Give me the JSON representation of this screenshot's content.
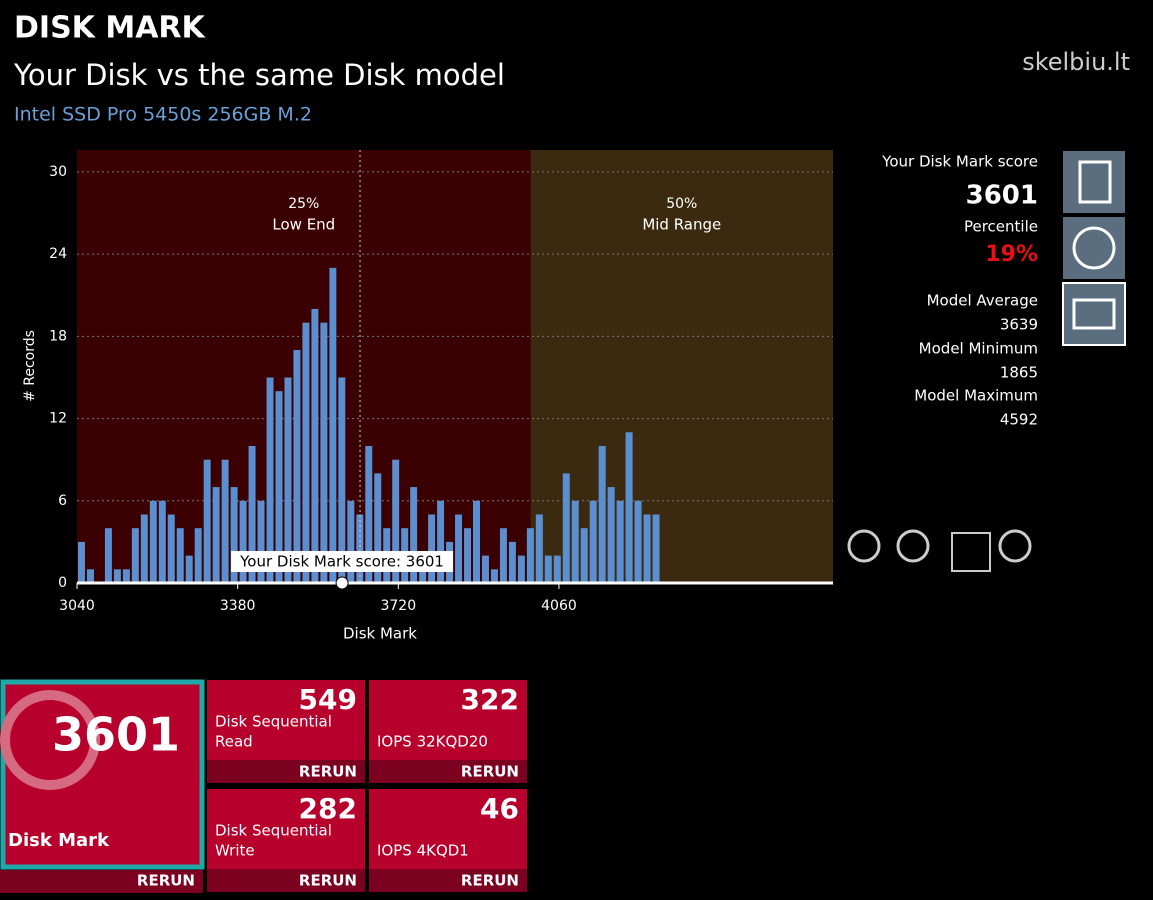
{
  "header": {
    "title": "DISK MARK",
    "subtitle": "Your Disk vs the same Disk model",
    "model": "Intel SSD Pro 5450s 256GB M.2",
    "logo": "skelbiu.lt"
  },
  "chart_data": {
    "type": "histogram",
    "xlabel": "Disk Mark",
    "ylabel": "# Records",
    "color": "#5b8fd0",
    "bins": [
      3040,
      3059,
      3078,
      3097,
      3116,
      3135,
      3154,
      3173,
      3192,
      3211,
      3230,
      3249,
      3268,
      3287,
      3306,
      3325,
      3344,
      3363,
      3382,
      3401,
      3420,
      3439,
      3458,
      3477,
      3496,
      3515,
      3534,
      3553,
      3572,
      3591,
      3610,
      3629,
      3648,
      3667,
      3686,
      3705,
      3724,
      3743,
      3762,
      3781,
      3800,
      3819,
      3838,
      3857,
      3876,
      3895,
      3914,
      3933,
      3952,
      3971,
      3990,
      4009,
      4028,
      4047,
      4066,
      4085,
      4104,
      4123,
      4142,
      4161,
      4180,
      4199,
      4218,
      4237,
      4256,
      4275
    ],
    "values": [
      3,
      1,
      0,
      4,
      1,
      1,
      4,
      5,
      6,
      6,
      5,
      4,
      2,
      4,
      9,
      7,
      9,
      7,
      6,
      10,
      6,
      15,
      14,
      15,
      17,
      19,
      20,
      19,
      23,
      15,
      6,
      5,
      10,
      8,
      4,
      9,
      4,
      7,
      2,
      5,
      6,
      3,
      5,
      4,
      6,
      2,
      1,
      4,
      3,
      2,
      4,
      5,
      2,
      2,
      8,
      6,
      4,
      6,
      10,
      7,
      6,
      11,
      6,
      5,
      5
    ],
    "xlim": [
      3040,
      4640
    ],
    "xticks": [
      3040,
      3380,
      3720,
      4060
    ],
    "ylim": [
      0,
      31.6
    ],
    "yticks": [
      0,
      6,
      12,
      18,
      24,
      30
    ],
    "grid": true,
    "bands": [
      {
        "percent": "25%",
        "label": "Low End",
        "from": 3040,
        "to": 4000,
        "color": "#3a0002"
      },
      {
        "percent": "50%",
        "label": "Mid Range",
        "from": 4000,
        "to": 4640,
        "color": "#3b2a10"
      }
    ],
    "marker": {
      "label": "Your Disk Mark score: 3601",
      "value": 3601
    },
    "average": 3639
  },
  "side": {
    "score_label": "Your Disk Mark score",
    "score": "3601",
    "percentile_label": "Percentile",
    "percentile": "19%",
    "avg_label": "Model Average",
    "avg": "3639",
    "min_label": "Model Minimum",
    "min": "1865",
    "max_label": "Model Maximum",
    "max": "4592"
  },
  "tiles": {
    "main": {
      "value": "3601",
      "label": "Disk Mark",
      "action": "RERUN"
    },
    "items": [
      {
        "value": "549",
        "label1": "Disk Sequential",
        "label2": "Read",
        "action": "RERUN"
      },
      {
        "value": "322",
        "label1": "",
        "label2": "IOPS 32KQD20",
        "action": "RERUN"
      },
      {
        "value": "282",
        "label1": "Disk Sequential",
        "label2": "Write",
        "action": "RERUN"
      },
      {
        "value": "46",
        "label1": "",
        "label2": "IOPS 4KQD1",
        "action": "RERUN"
      }
    ]
  }
}
